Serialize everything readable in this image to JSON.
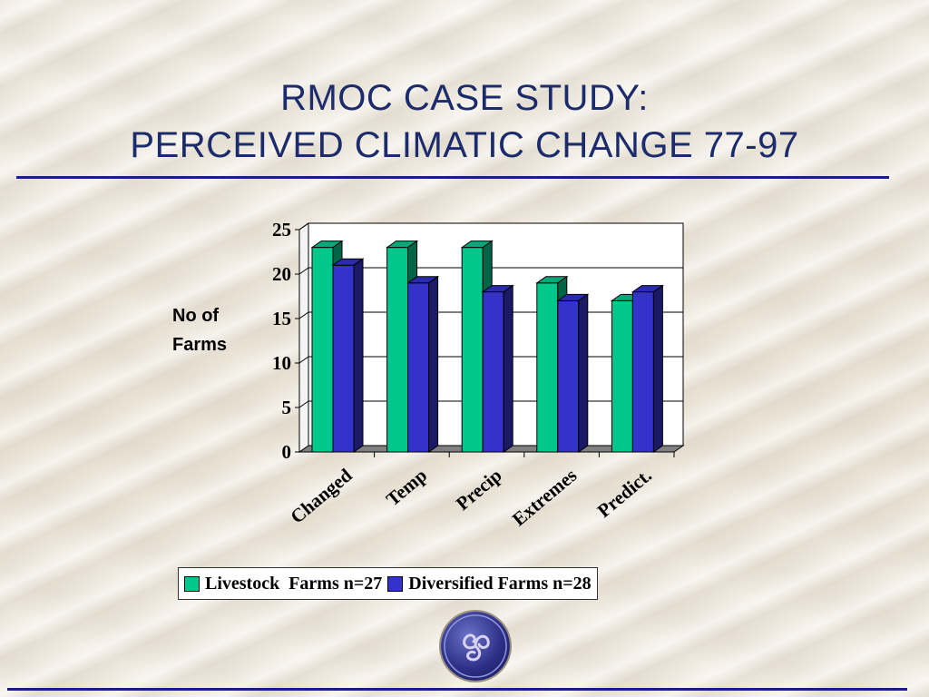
{
  "slide": {
    "title_line1": "RMOC CASE STUDY:",
    "title_line2": "PERCEIVED CLIMATIC CHANGE 77-97",
    "accent_color": "#1c1d8c",
    "title_color": "#1b2b6b"
  },
  "chart_data": {
    "type": "bar",
    "ylabel_line1": "No of",
    "ylabel_line2": "Farms",
    "categories": [
      "Changed",
      "Temp",
      "Precip",
      "Extremes",
      "Predict."
    ],
    "series": [
      {
        "name": "Livestock  Farms n=27",
        "color": "#00c78c",
        "values": [
          23,
          23,
          23,
          19,
          17
        ]
      },
      {
        "name": "Diversified Farms n=28",
        "color": "#3333cc",
        "values": [
          21,
          19,
          18,
          17,
          18
        ]
      }
    ],
    "ylim": [
      0,
      25
    ],
    "yticks": [
      "0",
      "5",
      "10",
      "15",
      "20",
      "25"
    ],
    "grid": true,
    "legend_position": "bottom",
    "three_d": true
  },
  "logo": {
    "icon": "triskelion-logo-icon"
  }
}
